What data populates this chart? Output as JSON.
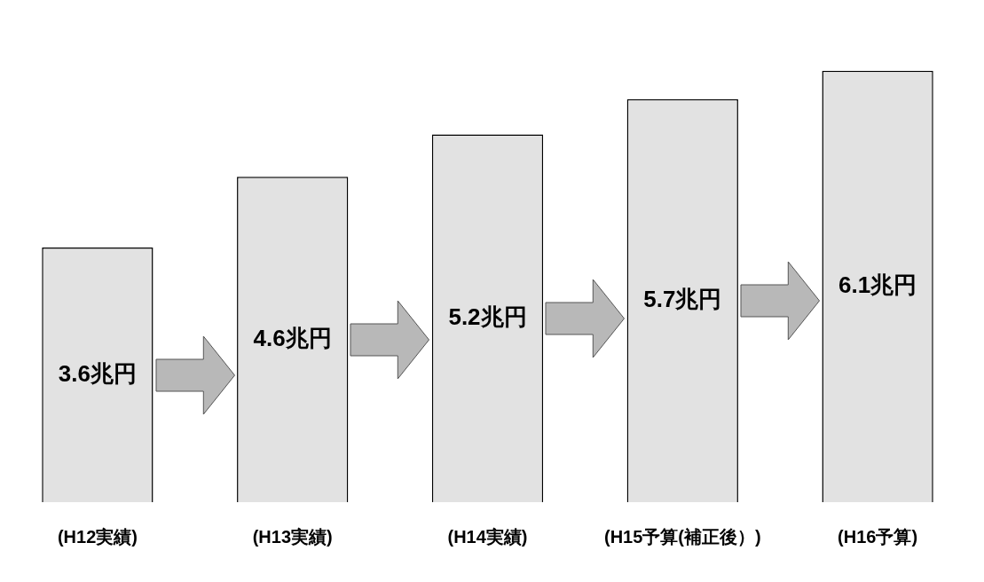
{
  "chart_data": {
    "type": "bar",
    "categories": [
      "(H12実績)",
      "(H13実績)",
      "(H14実績)",
      "(H15予算(補正後）)",
      "(H16予算)"
    ],
    "values": [
      3.6,
      4.6,
      5.2,
      5.7,
      6.1
    ],
    "value_labels": [
      "3.6兆円",
      "4.6兆円",
      "5.2兆円",
      "5.7兆円",
      "6.1兆円"
    ],
    "color": "#e2e2e2",
    "grid": false,
    "legend": false
  }
}
